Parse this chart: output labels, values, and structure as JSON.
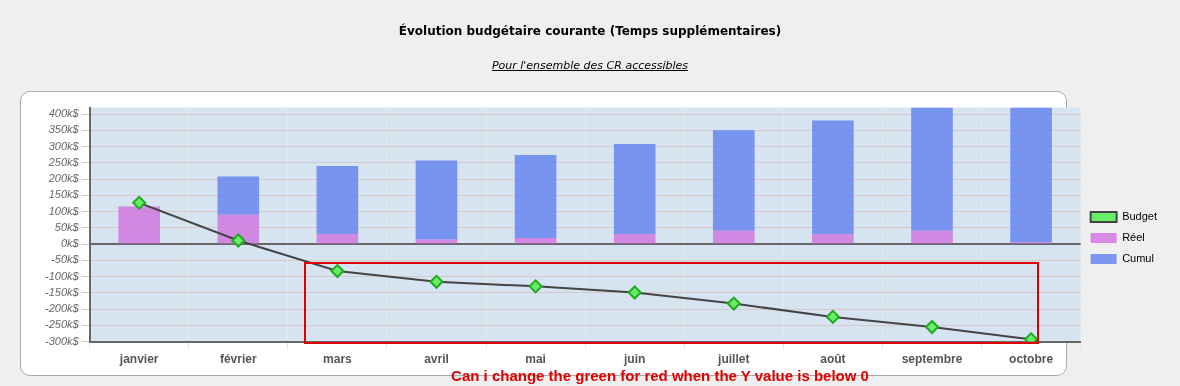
{
  "chart_data": {
    "type": "bar",
    "title": "Évolution budgétaire courante (Temps supplémentaires)",
    "subtitle": "Pour l'ensemble des CR accessibles",
    "categories": [
      "janvier",
      "février",
      "mars",
      "avril",
      "mai",
      "juin",
      "juillet",
      "août",
      "septembre",
      "octobre"
    ],
    "stacked": true,
    "series": [
      {
        "name": "Budget",
        "type": "line",
        "color": "#444444",
        "values": [
          127,
          11,
          -83,
          -116,
          -130,
          -149,
          -183,
          -224,
          -255,
          -293
        ]
      },
      {
        "name": "Réel",
        "color": "#d070e0",
        "values": [
          116,
          90,
          31,
          14,
          19,
          31,
          41,
          30,
          41,
          6
        ]
      },
      {
        "name": "Cumul",
        "color": "#5f7ff0",
        "values": [
          0,
          118,
          209,
          243,
          255,
          277,
          309,
          350,
          379,
          414
        ]
      }
    ],
    "ylim": [
      -300,
      420
    ],
    "yticks": [
      {
        "value": -300,
        "label": "-300k$"
      },
      {
        "value": -250,
        "label": "-250k$"
      },
      {
        "value": -200,
        "label": "-200k$"
      },
      {
        "value": -150,
        "label": "-150k$"
      },
      {
        "value": -100,
        "label": "-100k$"
      },
      {
        "value": -50,
        "label": "-50k$"
      },
      {
        "value": 0,
        "label": "0k$"
      },
      {
        "value": 50,
        "label": "50k$"
      },
      {
        "value": 100,
        "label": "100k$"
      },
      {
        "value": 150,
        "label": "150k$"
      },
      {
        "value": 200,
        "label": "200k$"
      },
      {
        "value": 250,
        "label": "250k$"
      },
      {
        "value": 300,
        "label": "300k$"
      },
      {
        "value": 350,
        "label": "350k$"
      },
      {
        "value": 400,
        "label": "400k$"
      }
    ],
    "grid": true,
    "legend": "right",
    "marker": "diamond",
    "annotations": [
      "Can i change the green for red when the Y value is below 0"
    ]
  }
}
